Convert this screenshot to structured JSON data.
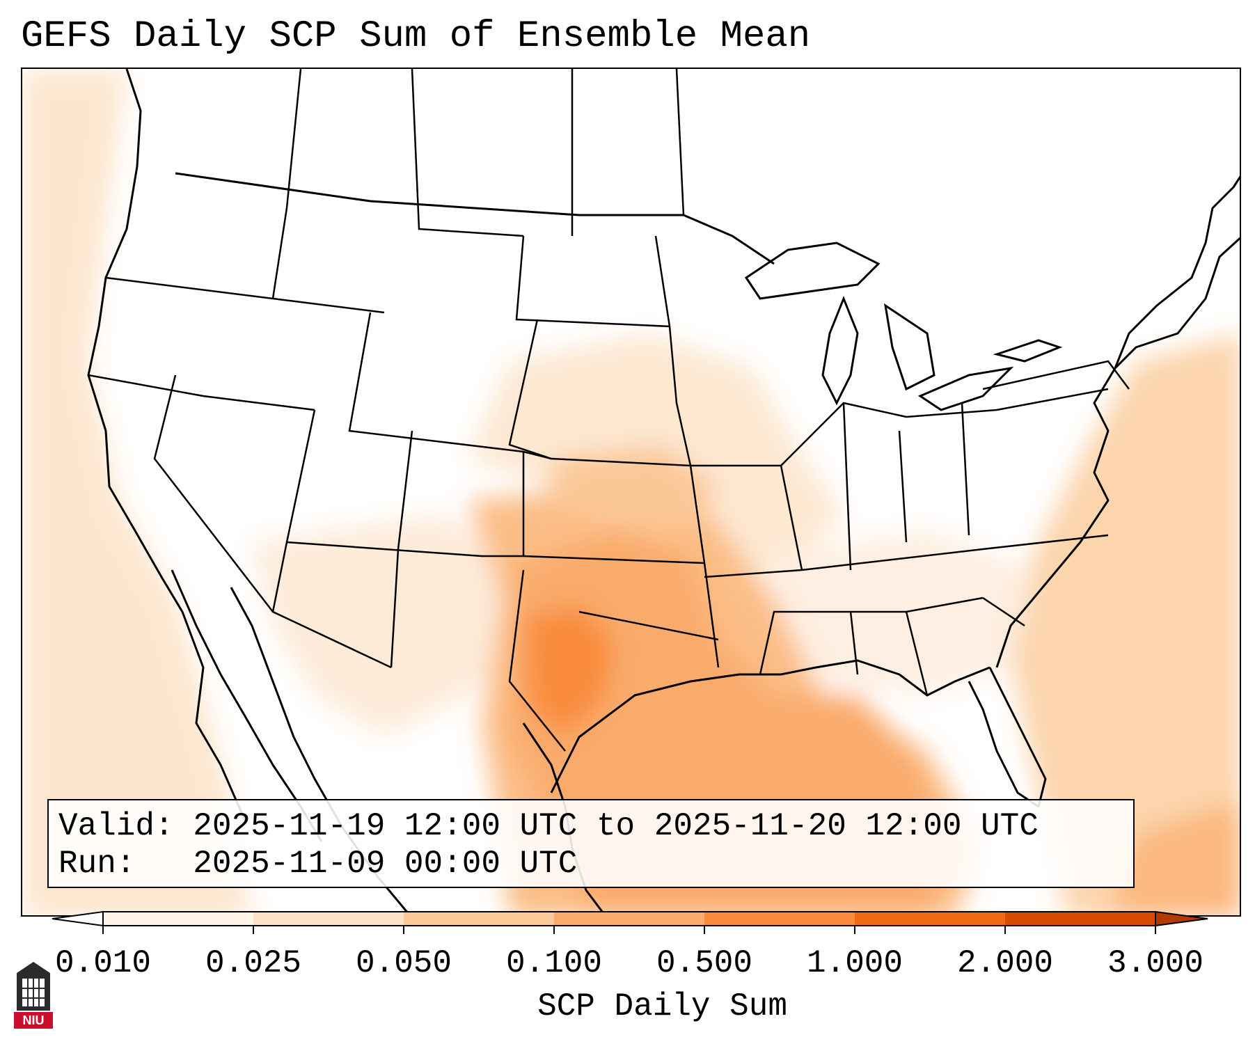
{
  "title": "GEFS Daily SCP Sum of Ensemble Mean",
  "info": {
    "valid_label": "Valid:",
    "valid_value": "2025-11-19 12:00 UTC to 2025-11-20 12:00 UTC",
    "run_label": "Run:",
    "run_value": "2025-11-09 00:00 UTC"
  },
  "colorbar": {
    "label": "SCP Daily Sum",
    "ticks": [
      "0.010",
      "0.025",
      "0.050",
      "0.100",
      "0.500",
      "1.000",
      "2.000",
      "3.000"
    ],
    "colors": [
      "#fff3e6",
      "#fde2c8",
      "#fcc998",
      "#fbab6d",
      "#f98b3b",
      "#f06a16",
      "#d84c02"
    ],
    "below_color": "#ffffff",
    "above_color": "#b33b02"
  },
  "logo": {
    "text": "NIU",
    "color": "#c8102e"
  },
  "map": {
    "shading": {
      "low_color": "#fff0e2",
      "light_color": "#fde0c4",
      "mid_color": "#fbc38f",
      "high_color": "#f9a96a",
      "peak_color": "#f98b3b"
    }
  }
}
